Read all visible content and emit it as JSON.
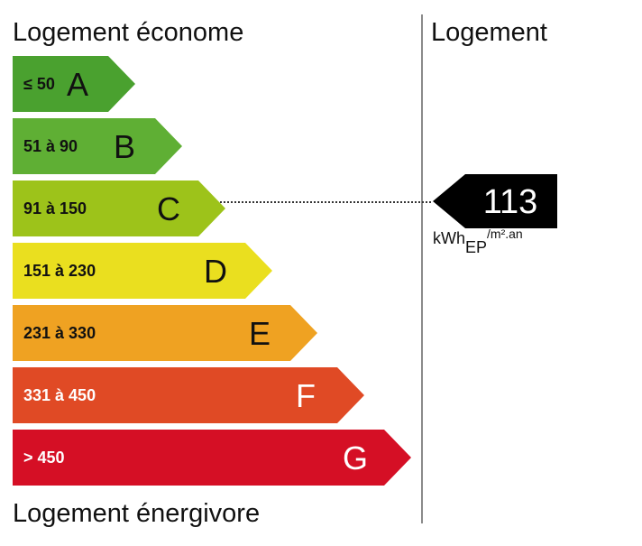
{
  "labels": {
    "top": "Logement économe",
    "bottom": "Logement énergivore",
    "right_column": "Logement"
  },
  "bands": [
    {
      "letter": "A",
      "range": "≤ 50",
      "color": "#4aa12f",
      "range_color": "#111111",
      "letter_color": "#111111"
    },
    {
      "letter": "B",
      "range": "51 à 90",
      "color": "#5faf34",
      "range_color": "#111111",
      "letter_color": "#111111"
    },
    {
      "letter": "C",
      "range": "91 à 150",
      "color": "#9dc31a",
      "range_color": "#111111",
      "letter_color": "#111111"
    },
    {
      "letter": "D",
      "range": "151 à 230",
      "color": "#eadf1f",
      "range_color": "#111111",
      "letter_color": "#111111"
    },
    {
      "letter": "E",
      "range": "231 à 330",
      "color": "#efa222",
      "range_color": "#111111",
      "letter_color": "#111111"
    },
    {
      "letter": "F",
      "range": "331 à 450",
      "color": "#e04a25",
      "range_color": "#ffffff",
      "letter_color": "#ffffff"
    },
    {
      "letter": "G",
      "range": "> 450",
      "color": "#d50f25",
      "range_color": "#ffffff",
      "letter_color": "#ffffff"
    }
  ],
  "marker": {
    "value": "113",
    "band": "C",
    "color": "#000000"
  },
  "unit": {
    "base": "kWh",
    "subscript": "EP",
    "suffix": "/m².an"
  }
}
